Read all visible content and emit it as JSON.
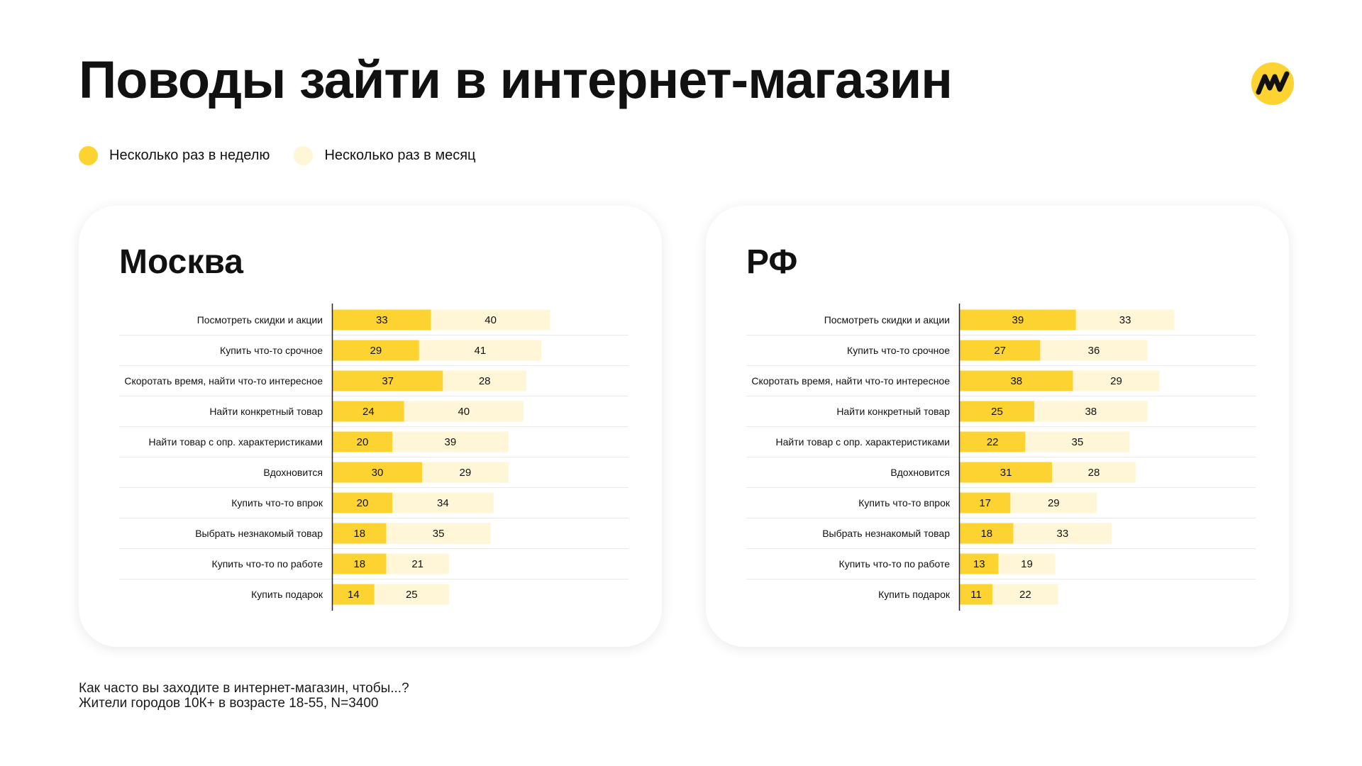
{
  "title": "Поводы зайти в интернет-магазин",
  "colors": {
    "weekly": "#FCD331",
    "monthly": "#FEF6D6",
    "logo_bg": "#FCD331",
    "logo_mark": "#111111"
  },
  "legend": [
    {
      "label": "Несколько раз в неделю",
      "color": "#FCD331"
    },
    {
      "label": "Несколько раз в месяц",
      "color": "#FEF6D6"
    }
  ],
  "logo": {
    "icon": "yandex-market-logo"
  },
  "footnote": {
    "question": "Как часто вы заходите в интернет-магазин, чтобы...?",
    "sample": "Жители городов 10К+ в возрасте 18-55, N=3400"
  },
  "chart_data": [
    {
      "type": "bar",
      "orientation": "horizontal",
      "stacked": true,
      "title": "Москва",
      "xlim": [
        0,
        100
      ],
      "categories": [
        "Посмотреть скидки и акции",
        "Купить что-то срочное",
        "Скоротать время, найти что-то интересное",
        "Найти конкретный товар",
        "Найти товар с опр. характеристиками",
        "Вдохновится",
        "Купить что-то впрок",
        "Выбрать незнакомый товар",
        "Купить что-то по работе",
        "Купить подарок"
      ],
      "series": [
        {
          "name": "Несколько раз в неделю",
          "values": [
            33,
            29,
            37,
            24,
            20,
            30,
            20,
            18,
            18,
            14
          ]
        },
        {
          "name": "Несколько раз в месяц",
          "values": [
            40,
            41,
            28,
            40,
            39,
            29,
            34,
            35,
            21,
            25
          ]
        }
      ]
    },
    {
      "type": "bar",
      "orientation": "horizontal",
      "stacked": true,
      "title": "РФ",
      "xlim": [
        0,
        100
      ],
      "categories": [
        "Посмотреть скидки и акции",
        "Купить что-то срочное",
        "Скоротать время, найти что-то интересное",
        "Найти конкретный товар",
        "Найти товар с опр. характеристиками",
        "Вдохновится",
        "Купить что-то впрок",
        "Выбрать незнакомый товар",
        "Купить что-то по работе",
        "Купить подарок"
      ],
      "series": [
        {
          "name": "Несколько раз в неделю",
          "values": [
            39,
            27,
            38,
            25,
            22,
            31,
            17,
            18,
            13,
            11
          ]
        },
        {
          "name": "Несколько раз в месяц",
          "values": [
            33,
            36,
            29,
            38,
            35,
            28,
            29,
            33,
            19,
            22
          ]
        }
      ]
    }
  ]
}
